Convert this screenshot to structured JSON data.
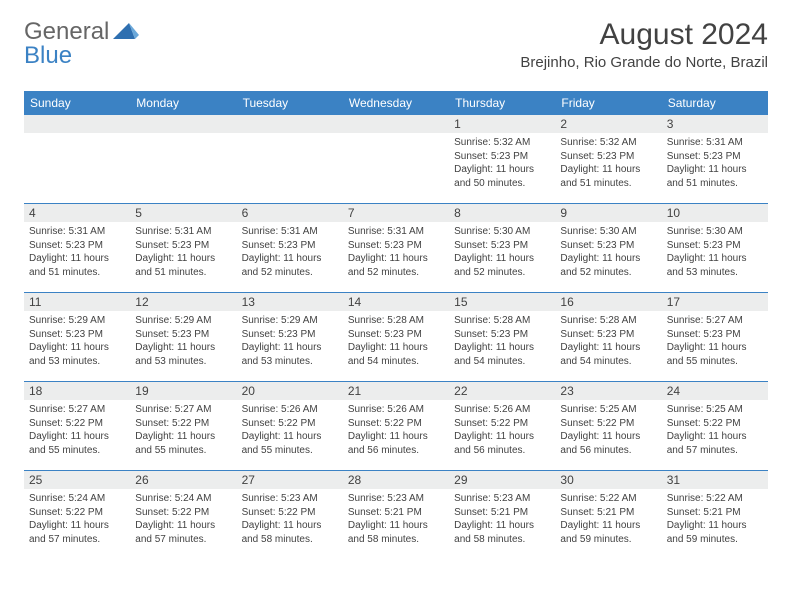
{
  "brand": {
    "general": "General",
    "blue": "Blue"
  },
  "title": "August 2024",
  "location": "Brejinho, Rio Grande do Norte, Brazil",
  "colors": {
    "header_bg": "#3b82c4",
    "daynum_bg": "#eceded",
    "text": "#424242",
    "week_border": "#3b82c4"
  },
  "weekdays": [
    "Sunday",
    "Monday",
    "Tuesday",
    "Wednesday",
    "Thursday",
    "Friday",
    "Saturday"
  ],
  "weeks": [
    [
      {
        "day": "",
        "sunrise": "",
        "sunset": "",
        "daylight": ""
      },
      {
        "day": "",
        "sunrise": "",
        "sunset": "",
        "daylight": ""
      },
      {
        "day": "",
        "sunrise": "",
        "sunset": "",
        "daylight": ""
      },
      {
        "day": "",
        "sunrise": "",
        "sunset": "",
        "daylight": ""
      },
      {
        "day": "1",
        "sunrise": "Sunrise: 5:32 AM",
        "sunset": "Sunset: 5:23 PM",
        "daylight": "Daylight: 11 hours and 50 minutes."
      },
      {
        "day": "2",
        "sunrise": "Sunrise: 5:32 AM",
        "sunset": "Sunset: 5:23 PM",
        "daylight": "Daylight: 11 hours and 51 minutes."
      },
      {
        "day": "3",
        "sunrise": "Sunrise: 5:31 AM",
        "sunset": "Sunset: 5:23 PM",
        "daylight": "Daylight: 11 hours and 51 minutes."
      }
    ],
    [
      {
        "day": "4",
        "sunrise": "Sunrise: 5:31 AM",
        "sunset": "Sunset: 5:23 PM",
        "daylight": "Daylight: 11 hours and 51 minutes."
      },
      {
        "day": "5",
        "sunrise": "Sunrise: 5:31 AM",
        "sunset": "Sunset: 5:23 PM",
        "daylight": "Daylight: 11 hours and 51 minutes."
      },
      {
        "day": "6",
        "sunrise": "Sunrise: 5:31 AM",
        "sunset": "Sunset: 5:23 PM",
        "daylight": "Daylight: 11 hours and 52 minutes."
      },
      {
        "day": "7",
        "sunrise": "Sunrise: 5:31 AM",
        "sunset": "Sunset: 5:23 PM",
        "daylight": "Daylight: 11 hours and 52 minutes."
      },
      {
        "day": "8",
        "sunrise": "Sunrise: 5:30 AM",
        "sunset": "Sunset: 5:23 PM",
        "daylight": "Daylight: 11 hours and 52 minutes."
      },
      {
        "day": "9",
        "sunrise": "Sunrise: 5:30 AM",
        "sunset": "Sunset: 5:23 PM",
        "daylight": "Daylight: 11 hours and 52 minutes."
      },
      {
        "day": "10",
        "sunrise": "Sunrise: 5:30 AM",
        "sunset": "Sunset: 5:23 PM",
        "daylight": "Daylight: 11 hours and 53 minutes."
      }
    ],
    [
      {
        "day": "11",
        "sunrise": "Sunrise: 5:29 AM",
        "sunset": "Sunset: 5:23 PM",
        "daylight": "Daylight: 11 hours and 53 minutes."
      },
      {
        "day": "12",
        "sunrise": "Sunrise: 5:29 AM",
        "sunset": "Sunset: 5:23 PM",
        "daylight": "Daylight: 11 hours and 53 minutes."
      },
      {
        "day": "13",
        "sunrise": "Sunrise: 5:29 AM",
        "sunset": "Sunset: 5:23 PM",
        "daylight": "Daylight: 11 hours and 53 minutes."
      },
      {
        "day": "14",
        "sunrise": "Sunrise: 5:28 AM",
        "sunset": "Sunset: 5:23 PM",
        "daylight": "Daylight: 11 hours and 54 minutes."
      },
      {
        "day": "15",
        "sunrise": "Sunrise: 5:28 AM",
        "sunset": "Sunset: 5:23 PM",
        "daylight": "Daylight: 11 hours and 54 minutes."
      },
      {
        "day": "16",
        "sunrise": "Sunrise: 5:28 AM",
        "sunset": "Sunset: 5:23 PM",
        "daylight": "Daylight: 11 hours and 54 minutes."
      },
      {
        "day": "17",
        "sunrise": "Sunrise: 5:27 AM",
        "sunset": "Sunset: 5:23 PM",
        "daylight": "Daylight: 11 hours and 55 minutes."
      }
    ],
    [
      {
        "day": "18",
        "sunrise": "Sunrise: 5:27 AM",
        "sunset": "Sunset: 5:22 PM",
        "daylight": "Daylight: 11 hours and 55 minutes."
      },
      {
        "day": "19",
        "sunrise": "Sunrise: 5:27 AM",
        "sunset": "Sunset: 5:22 PM",
        "daylight": "Daylight: 11 hours and 55 minutes."
      },
      {
        "day": "20",
        "sunrise": "Sunrise: 5:26 AM",
        "sunset": "Sunset: 5:22 PM",
        "daylight": "Daylight: 11 hours and 55 minutes."
      },
      {
        "day": "21",
        "sunrise": "Sunrise: 5:26 AM",
        "sunset": "Sunset: 5:22 PM",
        "daylight": "Daylight: 11 hours and 56 minutes."
      },
      {
        "day": "22",
        "sunrise": "Sunrise: 5:26 AM",
        "sunset": "Sunset: 5:22 PM",
        "daylight": "Daylight: 11 hours and 56 minutes."
      },
      {
        "day": "23",
        "sunrise": "Sunrise: 5:25 AM",
        "sunset": "Sunset: 5:22 PM",
        "daylight": "Daylight: 11 hours and 56 minutes."
      },
      {
        "day": "24",
        "sunrise": "Sunrise: 5:25 AM",
        "sunset": "Sunset: 5:22 PM",
        "daylight": "Daylight: 11 hours and 57 minutes."
      }
    ],
    [
      {
        "day": "25",
        "sunrise": "Sunrise: 5:24 AM",
        "sunset": "Sunset: 5:22 PM",
        "daylight": "Daylight: 11 hours and 57 minutes."
      },
      {
        "day": "26",
        "sunrise": "Sunrise: 5:24 AM",
        "sunset": "Sunset: 5:22 PM",
        "daylight": "Daylight: 11 hours and 57 minutes."
      },
      {
        "day": "27",
        "sunrise": "Sunrise: 5:23 AM",
        "sunset": "Sunset: 5:22 PM",
        "daylight": "Daylight: 11 hours and 58 minutes."
      },
      {
        "day": "28",
        "sunrise": "Sunrise: 5:23 AM",
        "sunset": "Sunset: 5:21 PM",
        "daylight": "Daylight: 11 hours and 58 minutes."
      },
      {
        "day": "29",
        "sunrise": "Sunrise: 5:23 AM",
        "sunset": "Sunset: 5:21 PM",
        "daylight": "Daylight: 11 hours and 58 minutes."
      },
      {
        "day": "30",
        "sunrise": "Sunrise: 5:22 AM",
        "sunset": "Sunset: 5:21 PM",
        "daylight": "Daylight: 11 hours and 59 minutes."
      },
      {
        "day": "31",
        "sunrise": "Sunrise: 5:22 AM",
        "sunset": "Sunset: 5:21 PM",
        "daylight": "Daylight: 11 hours and 59 minutes."
      }
    ]
  ]
}
